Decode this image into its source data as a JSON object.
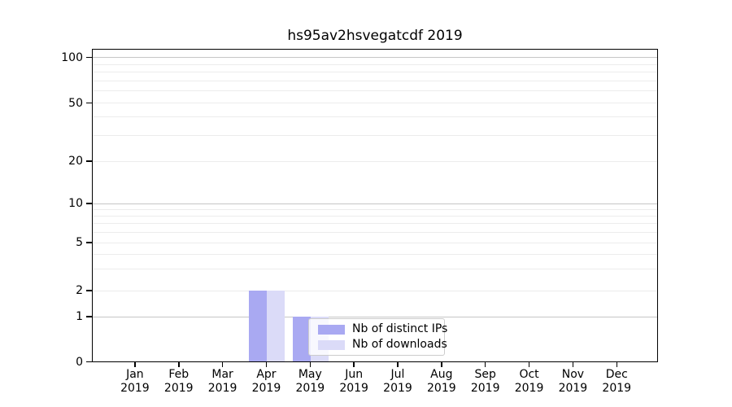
{
  "chart_data": {
    "type": "bar",
    "title": "hs95av2hsvegatcdf 2019",
    "xlabel": "",
    "ylabel": "",
    "categories": [
      "Jan 2019",
      "Feb 2019",
      "Mar 2019",
      "Apr 2019",
      "May 2019",
      "Jun 2019",
      "Jul 2019",
      "Aug 2019",
      "Sep 2019",
      "Oct 2019",
      "Nov 2019",
      "Dec 2019"
    ],
    "series": [
      {
        "name": "Nb of distinct IPs",
        "color": "#a9a9f2",
        "values": [
          0,
          0,
          0,
          2,
          1,
          0,
          0,
          0,
          0,
          0,
          0,
          0
        ]
      },
      {
        "name": "Nb of downloads",
        "color": "#dbdbf8",
        "values": [
          0,
          0,
          0,
          2,
          1,
          0,
          0,
          0,
          0,
          0,
          0,
          0
        ]
      }
    ],
    "y_axis": {
      "ticks": [
        0,
        1,
        2,
        5,
        10,
        20,
        50,
        100
      ],
      "scale": "symlog-like",
      "range": [
        0,
        110
      ]
    },
    "grid": {
      "on": true,
      "major_values": [
        1,
        10,
        100
      ],
      "minor_values": [
        2,
        3,
        4,
        5,
        6,
        7,
        8,
        9,
        20,
        30,
        40,
        50,
        60,
        70,
        80,
        90
      ]
    },
    "legend": {
      "position": "inside-bottom-center",
      "entries": [
        "Nb of distinct IPs",
        "Nb of downloads"
      ]
    }
  },
  "colors": {
    "background": "#ffffff",
    "spine": "#000000",
    "major_grid": "#c6c6c6",
    "minor_grid": "#ececec",
    "legend_border": "#cccccc",
    "legend_background": "rgba(255,255,255,0.8)",
    "text": "#000000"
  }
}
